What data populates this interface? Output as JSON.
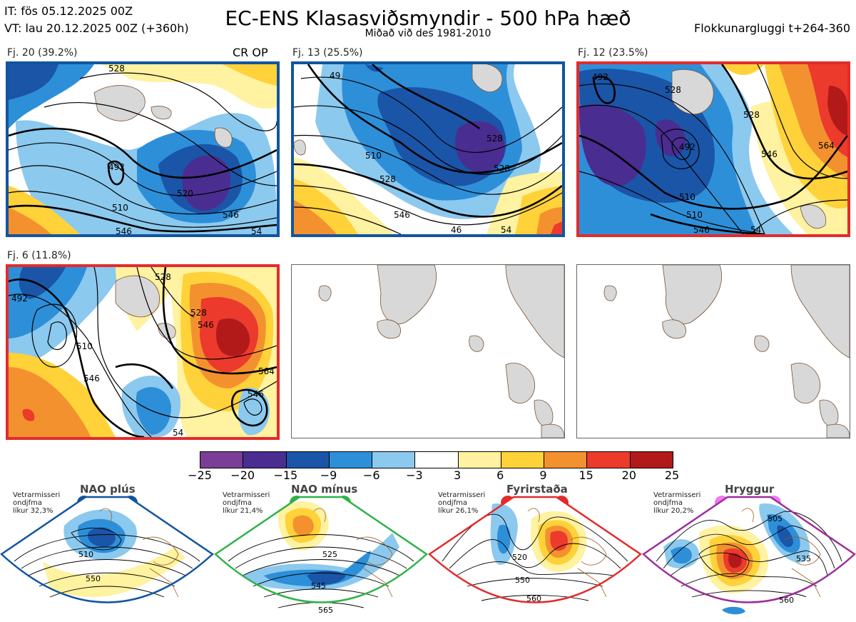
{
  "header": {
    "it": "IT: fös 05.12.2025 00Z",
    "vt": "VT: lau 20.12.2025 00Z  (+360h)",
    "title": "EC-ENS Klasasviðsmyndir - 500 hPa hæð",
    "subtitle": "Miðað við des 1981-2010",
    "window": "Flokkunargluggi t+264-360"
  },
  "clusters": [
    {
      "label": "Fj. 20 (39.2%)",
      "extra": "CR OP",
      "border": "#1155a0",
      "contours": [
        "492",
        "546",
        "510",
        "528",
        "520",
        "546",
        "54"
      ]
    },
    {
      "label": "Fj. 13 (25.5%)",
      "border": "#1155a0",
      "contours": [
        "49",
        "510",
        "528",
        "528",
        "546",
        "528",
        "46",
        "54"
      ]
    },
    {
      "label": "Fj. 12 (23.5%)",
      "border": "#e32b2b",
      "contours": [
        "492",
        "510",
        "528",
        "492",
        "528",
        "546",
        "564",
        "510",
        "546",
        "54"
      ]
    },
    {
      "label": "Fj. 6 (11.8%)",
      "border": "#e32b2b",
      "contours": [
        "492",
        "510",
        "528",
        "546",
        "528",
        "546",
        "564",
        "546",
        "54"
      ]
    }
  ],
  "colorbar": {
    "ticks": [
      "−25",
      "−20",
      "−15",
      "−9",
      "−6",
      "−3",
      "3",
      "6",
      "9",
      "15",
      "20",
      "25"
    ],
    "colors": [
      "#7a3d98",
      "#4a2d90",
      "#1a55a8",
      "#2e8fd9",
      "#8cc9ee",
      "#ffffff",
      "#fff2a0",
      "#ffd23a",
      "#f4912f",
      "#ec3a2c",
      "#b21a1a"
    ]
  },
  "regimes": [
    {
      "name": "NAO plús",
      "stat1": "Vetrarmisseri",
      "stat2": "ondjfma",
      "stat3": "líkur 32,3%",
      "color": "#1155a0",
      "contours": [
        "510",
        "550"
      ]
    },
    {
      "name": "NAO mínus",
      "stat1": "Vetrarmisseri",
      "stat2": "ondjfma",
      "stat3": "líkur 21,4%",
      "color": "#2fb24a",
      "contours": [
        "525",
        "545",
        "565"
      ]
    },
    {
      "name": "Fyrirstaða",
      "stat1": "Vetrarmisseri",
      "stat2": "ondjfma",
      "stat3": "líkur 26,1%",
      "color": "#e32b2b",
      "contours": [
        "520",
        "550",
        "560"
      ]
    },
    {
      "name": "Hryggur",
      "stat1": "Vetrarmisseri",
      "stat2": "ondjfma",
      "stat3": "líkur 20,2%",
      "color": "#9b2f9b",
      "contours": [
        "505",
        "535",
        "560"
      ]
    }
  ]
}
